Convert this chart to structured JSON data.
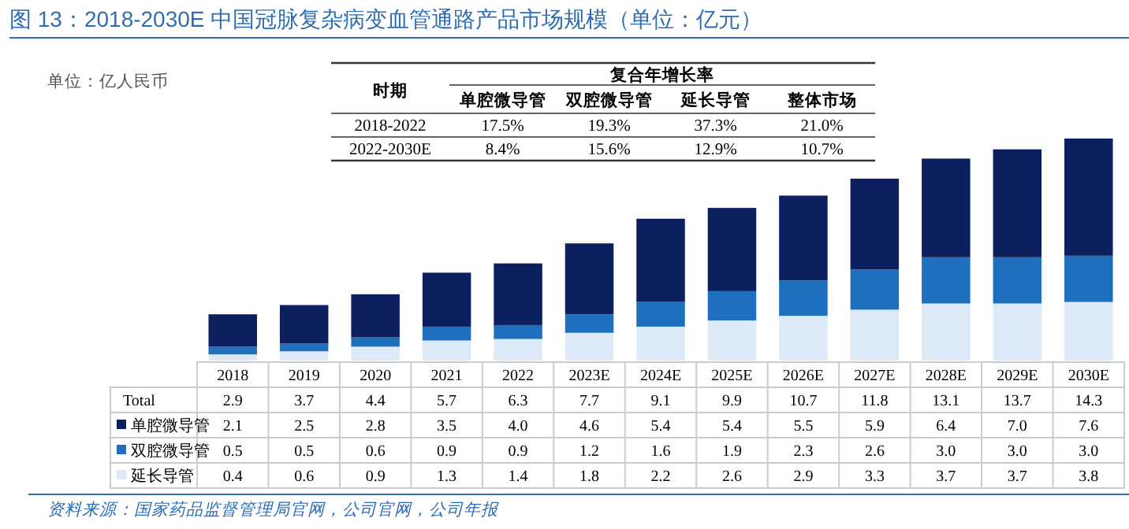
{
  "chart_data": {
    "type": "bar",
    "title": "图 13：2018-2030E 中国冠脉复杂病变血管通路产品市场规模（单位：亿元）",
    "ylabel": "单位：亿人民币",
    "stacked": true,
    "legend": "bottom left",
    "categories": [
      "2018",
      "2019",
      "2020",
      "2021",
      "2022",
      "2023E",
      "2024E",
      "2025E",
      "2026E",
      "2027E",
      "2028E",
      "2029E",
      "2030E"
    ],
    "series": [
      {
        "name": "延长导管",
        "color": "#dceaf7",
        "values": [
          0.4,
          0.6,
          0.9,
          1.3,
          1.4,
          1.8,
          2.2,
          2.6,
          2.9,
          3.3,
          3.7,
          3.7,
          3.8
        ],
        "value_labels": [
          "0.4",
          "0.6",
          "0.9",
          "1.3",
          "1.4",
          "1.8",
          "2.2",
          "2.6",
          "2.9",
          "3.3",
          "3.7",
          "3.7",
          "3.8"
        ]
      },
      {
        "name": "双腔微导管",
        "color": "#1f6fbf",
        "values": [
          0.5,
          0.5,
          0.6,
          0.9,
          0.9,
          1.2,
          1.6,
          1.9,
          2.3,
          2.6,
          3.0,
          3.0,
          3.0
        ],
        "value_labels": [
          "0.5",
          "0.5",
          "0.6",
          "0.9",
          "0.9",
          "1.2",
          "1.6",
          "1.9",
          "2.3",
          "2.6",
          "3.0",
          "3.0",
          "3.0"
        ]
      },
      {
        "name": "单腔微导管",
        "color": "#0c1f5e",
        "values": [
          2.1,
          2.5,
          2.8,
          3.5,
          4.0,
          4.6,
          5.4,
          5.4,
          5.5,
          5.9,
          6.4,
          7.0,
          7.6
        ],
        "value_labels": [
          "2.1",
          "2.5",
          "2.8",
          "3.5",
          "4.0",
          "4.6",
          "5.4",
          "5.4",
          "5.5",
          "5.9",
          "6.4",
          "7.0",
          "7.6"
        ]
      }
    ],
    "totals": [
      "2.9",
      "3.7",
      "4.4",
      "5.7",
      "6.3",
      "7.7",
      "9.1",
      "9.9",
      "10.7",
      "11.8",
      "13.1",
      "13.7",
      "14.3"
    ],
    "annotations": [
      "资料来源：国家药品监督管理局官网，公司官网，公司年报",
      "Total",
      "时期",
      "复合年增长率",
      "单腔微导管",
      "双腔微导管",
      "延长导管",
      "整体市场",
      "2018-2022",
      "17.5%",
      "19.3%",
      "37.3%",
      "21.0%",
      "2022-2030E",
      "8.4%",
      "15.6%",
      "12.9%",
      "10.7%"
    ]
  }
}
